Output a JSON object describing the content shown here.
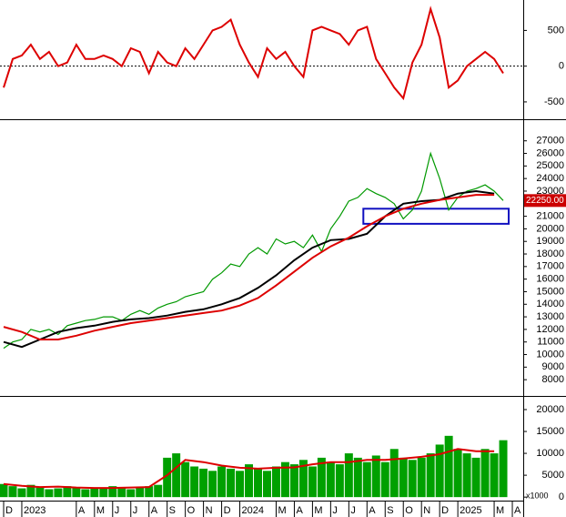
{
  "chart_data": [
    {
      "type": "line",
      "grid_zero": true,
      "xlim": [
        -0.2,
        28.6
      ],
      "ylim": [
        -730,
        900
      ],
      "yticks": [
        -500,
        0,
        500
      ],
      "series": [
        {
          "color": "#dd0000",
          "x": [
            0,
            0.5,
            1,
            1.5,
            2,
            2.5,
            3,
            3.5,
            4,
            4.5,
            5,
            5.5,
            6,
            6.5,
            7,
            7.5,
            8,
            8.5,
            9,
            9.5,
            10,
            10.5,
            11,
            11.5,
            12,
            12.5,
            13,
            13.5,
            14,
            14.5,
            15,
            15.5,
            16,
            16.5,
            17,
            17.5,
            18,
            18.5,
            19,
            19.5,
            20,
            20.5,
            21,
            21.5,
            22,
            22.5,
            23,
            23.5,
            24,
            24.5,
            25,
            25.5,
            26,
            26.5,
            27,
            27.5
          ],
          "values": [
            -300,
            100,
            150,
            300,
            100,
            200,
            0,
            50,
            300,
            100,
            100,
            150,
            100,
            0,
            250,
            200,
            -100,
            200,
            50,
            0,
            250,
            100,
            300,
            500,
            550,
            650,
            300,
            50,
            -150,
            250,
            100,
            200,
            0,
            -150,
            500,
            550,
            500,
            450,
            300,
            500,
            550,
            100,
            -100,
            -300,
            -450,
            50,
            300,
            800,
            400,
            -300,
            -200,
            0,
            100,
            200,
            100,
            -100
          ]
        }
      ]
    },
    {
      "type": "line",
      "xlim": [
        -0.2,
        28.6
      ],
      "ylim": [
        6780,
        28500
      ],
      "yticks": [
        8000,
        9000,
        10000,
        11000,
        12000,
        13000,
        14000,
        15000,
        16000,
        17000,
        18000,
        19000,
        20000,
        21000,
        22000,
        23000,
        24000,
        25000,
        26000,
        27000
      ],
      "last_price": {
        "value": 22250,
        "label": "22250.00"
      },
      "zone": {
        "x": [
          19.8,
          27.8
        ],
        "y": [
          20400,
          21600
        ],
        "color": "#1010c0"
      },
      "series": [
        {
          "color": "#009900",
          "x": [
            0,
            0.5,
            1,
            1.5,
            2,
            2.5,
            3,
            3.5,
            4,
            4.5,
            5,
            5.5,
            6,
            6.5,
            7,
            7.5,
            8,
            8.5,
            9,
            9.5,
            10,
            10.5,
            11,
            11.5,
            12,
            12.5,
            13,
            13.5,
            14,
            14.5,
            15,
            15.5,
            16,
            16.5,
            17,
            17.5,
            18,
            18.5,
            19,
            19.5,
            20,
            20.5,
            21,
            21.5,
            22,
            22.5,
            23,
            23.5,
            24,
            24.5,
            25,
            25.5,
            26,
            26.5,
            27,
            27.5
          ],
          "values": [
            10500,
            11000,
            11200,
            12000,
            11800,
            12000,
            11600,
            12300,
            12500,
            12700,
            12800,
            13000,
            13000,
            12700,
            13200,
            13500,
            13200,
            13700,
            14000,
            14200,
            14600,
            14800,
            15000,
            16000,
            16500,
            17200,
            17000,
            18000,
            18500,
            18000,
            19200,
            18800,
            19000,
            18500,
            19500,
            18200,
            20000,
            21000,
            22200,
            22500,
            23200,
            22800,
            22500,
            22000,
            20800,
            21500,
            23000,
            26000,
            24000,
            21500,
            22500,
            23000,
            23200,
            23500,
            23000,
            22250
          ]
        },
        {
          "color": "#000000",
          "x": [
            0,
            1,
            2,
            3,
            4,
            5,
            6,
            7,
            8,
            9,
            10,
            11,
            12,
            13,
            14,
            15,
            16,
            17,
            18,
            19,
            20,
            21,
            22,
            23,
            24,
            25,
            26,
            27
          ],
          "values": [
            11000,
            10600,
            11200,
            11800,
            12100,
            12300,
            12600,
            12800,
            12900,
            13100,
            13400,
            13600,
            14000,
            14500,
            15300,
            16300,
            17500,
            18500,
            19100,
            19200,
            19600,
            21000,
            22000,
            22200,
            22300,
            22800,
            23000,
            22800
          ]
        },
        {
          "color": "#dd0000",
          "x": [
            0,
            1,
            2,
            3,
            4,
            5,
            6,
            7,
            8,
            9,
            10,
            11,
            12,
            13,
            14,
            15,
            16,
            17,
            18,
            19,
            20,
            21,
            22,
            23,
            24,
            25,
            26,
            27
          ],
          "values": [
            12200,
            11800,
            11200,
            11200,
            11500,
            11900,
            12200,
            12500,
            12700,
            12900,
            13100,
            13300,
            13500,
            13900,
            14500,
            15500,
            16600,
            17700,
            18600,
            19300,
            20200,
            21000,
            21600,
            22000,
            22300,
            22500,
            22700,
            22700
          ]
        }
      ]
    },
    {
      "type": "bar",
      "xlim": [
        -0.2,
        28.6
      ],
      "ylim": [
        -800,
        22700
      ],
      "yticks": [
        0,
        5000,
        10000,
        15000,
        20000
      ],
      "y_unit": "x1000",
      "xticks": [
        {
          "value": 0,
          "label": "D"
        },
        {
          "value": 1,
          "label": "2023"
        },
        {
          "value": 4,
          "label": "A"
        },
        {
          "value": 5,
          "label": "M"
        },
        {
          "value": 6,
          "label": "J"
        },
        {
          "value": 7,
          "label": "J"
        },
        {
          "value": 8,
          "label": "A"
        },
        {
          "value": 9,
          "label": "S"
        },
        {
          "value": 10,
          "label": "O"
        },
        {
          "value": 11,
          "label": "N"
        },
        {
          "value": 12,
          "label": "D"
        },
        {
          "value": 13,
          "label": "2024"
        },
        {
          "value": 15,
          "label": "M"
        },
        {
          "value": 16,
          "label": "A"
        },
        {
          "value": 17,
          "label": "M"
        },
        {
          "value": 18,
          "label": "J"
        },
        {
          "value": 19,
          "label": "J"
        },
        {
          "value": 20,
          "label": "A"
        },
        {
          "value": 21,
          "label": "S"
        },
        {
          "value": 22,
          "label": "O"
        },
        {
          "value": 23,
          "label": "N"
        },
        {
          "value": 24,
          "label": "D"
        },
        {
          "value": 25,
          "label": "2025"
        },
        {
          "value": 27,
          "label": "M"
        },
        {
          "value": 28,
          "label": "A"
        }
      ],
      "series": [
        {
          "color": "#00a000",
          "x": [
            0,
            0.5,
            1,
            1.5,
            2,
            2.5,
            3,
            3.5,
            4,
            4.5,
            5,
            5.5,
            6,
            6.5,
            7,
            7.5,
            8,
            8.5,
            9,
            9.5,
            10,
            10.5,
            11,
            11.5,
            12,
            12.5,
            13,
            13.5,
            14,
            14.5,
            15,
            15.5,
            16,
            16.5,
            17,
            17.5,
            18,
            18.5,
            19,
            19.5,
            20,
            20.5,
            21,
            21.5,
            22,
            22.5,
            23,
            23.5,
            24,
            24.5,
            25,
            25.5,
            26,
            26.5,
            27,
            27.5
          ],
          "values": [
            3000,
            2500,
            2000,
            2800,
            2200,
            1800,
            2000,
            2500,
            2200,
            1800,
            2000,
            2200,
            2500,
            2000,
            1800,
            2200,
            2500,
            2800,
            9000,
            10000,
            8000,
            7000,
            6500,
            6000,
            7000,
            6500,
            6000,
            7500,
            6500,
            6000,
            7000,
            8000,
            7500,
            8500,
            7000,
            9000,
            8000,
            7500,
            10000,
            9000,
            8000,
            9500,
            8000,
            11000,
            9000,
            8500,
            9000,
            10000,
            12000,
            14000,
            11000,
            10000,
            9000,
            11000,
            10000,
            13000
          ]
        },
        {
          "color": "#dd0000",
          "kind": "line",
          "x": [
            0,
            1,
            2,
            3,
            4,
            5,
            6,
            7,
            8,
            9,
            10,
            11,
            12,
            13,
            14,
            15,
            16,
            17,
            18,
            19,
            20,
            21,
            22,
            23,
            24,
            25,
            26,
            27
          ],
          "values": [
            3000,
            2600,
            2300,
            2400,
            2200,
            2100,
            2100,
            2200,
            2300,
            5000,
            8500,
            8000,
            7200,
            6700,
            6500,
            6700,
            6800,
            7500,
            8000,
            8000,
            8500,
            8500,
            8800,
            9200,
            9800,
            11000,
            10500,
            10500
          ]
        }
      ]
    }
  ]
}
